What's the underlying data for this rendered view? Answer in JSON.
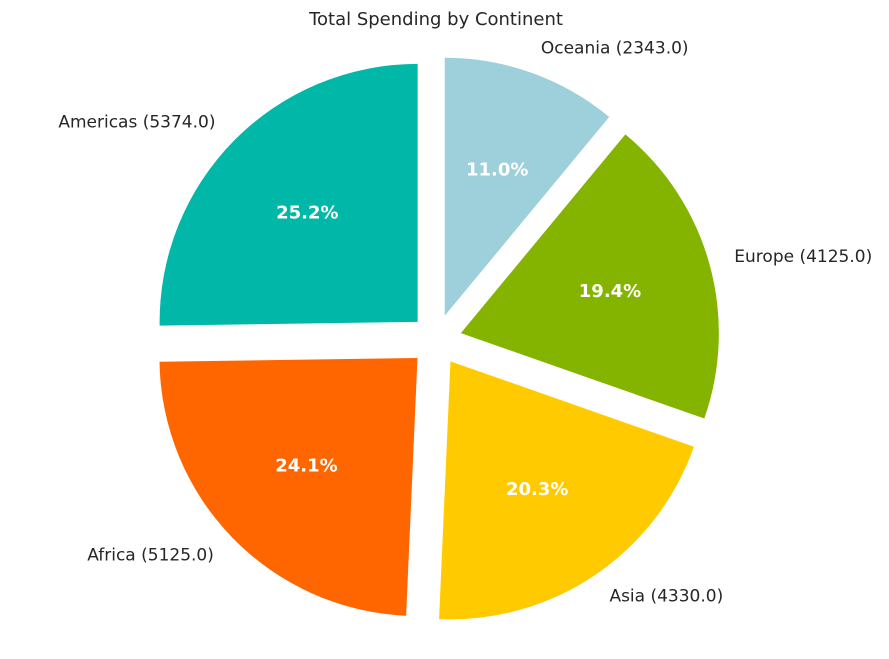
{
  "chart_data": {
    "type": "pie",
    "title": "Total Spending by Continent",
    "slices": [
      {
        "label": "Oceania (2343.0)",
        "value": 2343.0,
        "percent_label": "11.0%",
        "color": "#9ed0dc"
      },
      {
        "label": "Europe (4125.0)",
        "value": 4125.0,
        "percent_label": "19.4%",
        "color": "#84b400"
      },
      {
        "label": "Asia (4330.0)",
        "value": 4330.0,
        "percent_label": "20.3%",
        "color": "#ffcb00"
      },
      {
        "label": "Africa (5125.0)",
        "value": 5125.0,
        "percent_label": "24.1%",
        "color": "#ff6600"
      },
      {
        "label": "Americas (5374.0)",
        "value": 5374.0,
        "percent_label": "25.2%",
        "color": "#00b7a8"
      }
    ],
    "start_angle_deg": 90,
    "direction": "clockwise",
    "legend": "none"
  }
}
